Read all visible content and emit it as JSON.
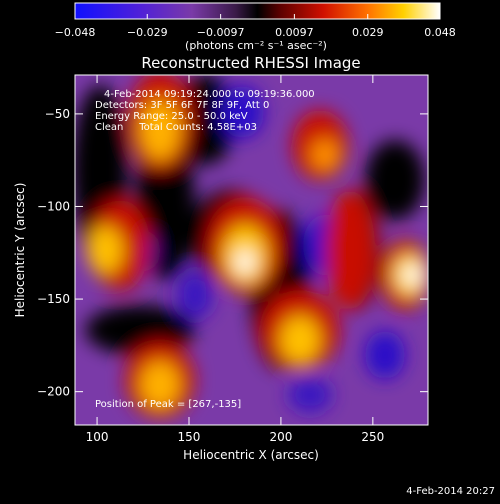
{
  "colorbar": {
    "ticks": [
      "−0.048",
      "−0.029",
      "−0.0097",
      "0.0097",
      "0.029",
      "0.048"
    ],
    "tick_values": [
      -0.048,
      -0.029,
      -0.0097,
      0.0097,
      0.029,
      0.048
    ],
    "range": [
      -0.048,
      0.048
    ],
    "colormap": "blue-purple-black-red-yellow-white",
    "unit_label": "(photons cm⁻² s⁻¹ asec⁻²)"
  },
  "chart_data": {
    "type": "heatmap",
    "title": "Reconstructed RHESSI Image",
    "xlabel": "Heliocentric X (arcsec)",
    "ylabel": "Heliocentric Y (arcsec)",
    "xlim": [
      88,
      280
    ],
    "ylim": [
      -218,
      -29
    ],
    "xticks": [
      100,
      150,
      200,
      250
    ],
    "yticks": [
      -50,
      -100,
      -150,
      -200
    ],
    "info_lines": [
      "4-Feb-2014 09:19:24.000 to 09:19:36.000",
      "Detectors: 3F 5F 6F 7F 8F 9F, Att 0",
      "Energy Range: 25.0 - 50.0 keV",
      "Clean     Total Counts: 4.58E+03"
    ],
    "peak_label": "Position of Peak = [267,-135]",
    "peak": {
      "x": 267,
      "y": -135
    },
    "colorbar_range": [
      -0.048,
      0.048
    ]
  },
  "footer": {
    "timestamp": "4-Feb-2014 20:27"
  }
}
